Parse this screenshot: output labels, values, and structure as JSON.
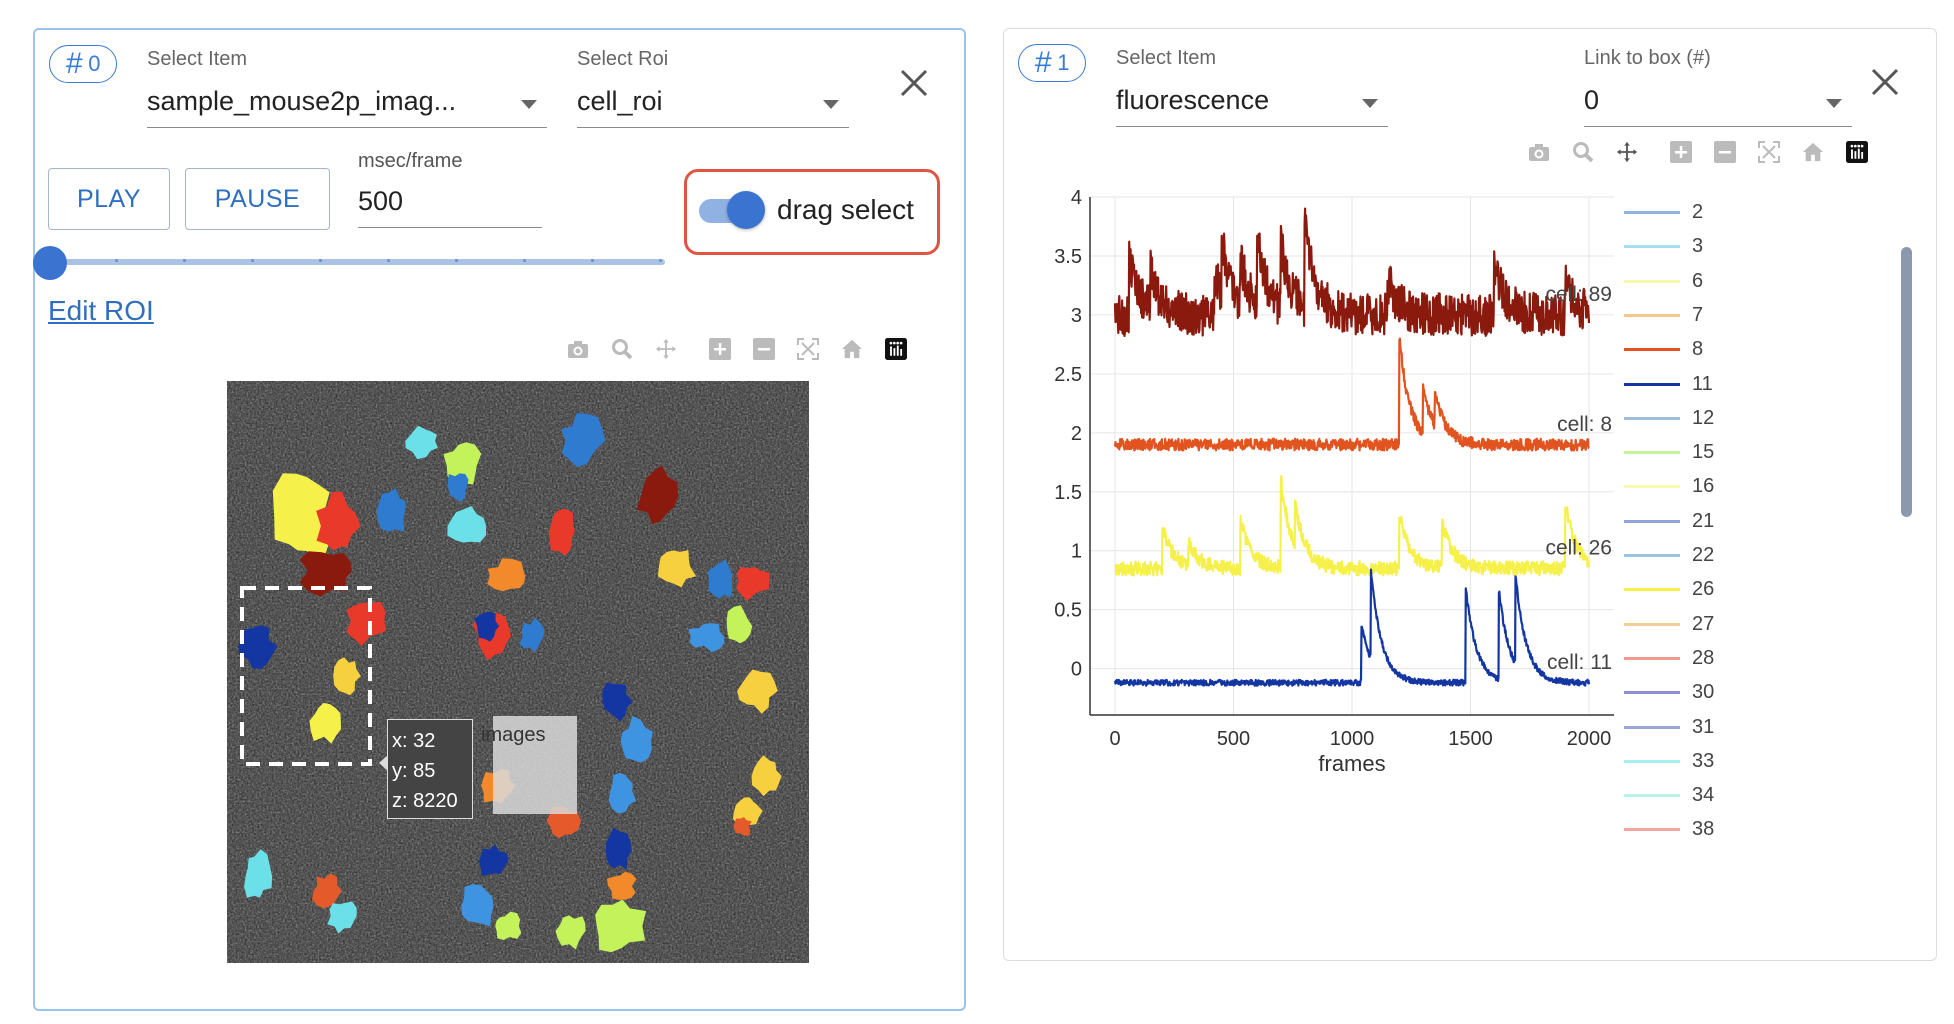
{
  "panel0": {
    "badge_hash": "#",
    "badge_num": "0",
    "select_item_label": "Select Item",
    "select_item_value": "sample_mouse2p_imag...",
    "select_roi_label": "Select Roi",
    "select_roi_value": "cell_roi",
    "play_label": "PLAY",
    "pause_label": "PAUSE",
    "msec_label": "msec/frame",
    "msec_value": "500",
    "drag_select_label": "drag select",
    "drag_select_on": true,
    "edit_roi_label": "Edit ROI",
    "tooltip": {
      "x": "x: 32",
      "y": "y: 85",
      "z": "z: 8220",
      "name": "images"
    }
  },
  "panel1": {
    "badge_hash": "#",
    "badge_num": "1",
    "select_item_label": "Select Item",
    "select_item_value": "fluorescence",
    "link_label": "Link to box (#)",
    "link_value": "0"
  },
  "icons": [
    "camera-icon",
    "zoom-icon",
    "pan-icon",
    "zoom-in-icon",
    "zoom-out-icon",
    "autoscale-icon",
    "reset-home-icon",
    "plotly-logo-icon",
    "close-icon",
    "chevron-down-icon"
  ],
  "chart_data": {
    "type": "line",
    "xlabel": "frames",
    "ylabel": "",
    "xlim": [
      0,
      2000
    ],
    "ylim": [
      -0.3,
      4
    ],
    "x_ticks": [
      "0",
      "500",
      "1000",
      "1500",
      "2000"
    ],
    "y_ticks": [
      "0",
      "0.5",
      "1",
      "1.5",
      "2",
      "2.5",
      "3",
      "3.5",
      "4"
    ],
    "series": [
      {
        "name": "cell: 89",
        "color": "#8b1a0e",
        "baseline": 3.0,
        "noise": 0.18,
        "peaks": [
          [
            60,
            0.5
          ],
          [
            150,
            0.3
          ],
          [
            420,
            0.35
          ],
          [
            450,
            0.5
          ],
          [
            530,
            0.35
          ],
          [
            600,
            0.6
          ],
          [
            700,
            0.55
          ],
          [
            800,
            0.7
          ],
          [
            1150,
            0.3
          ],
          [
            1600,
            0.45
          ],
          [
            1900,
            0.25
          ]
        ]
      },
      {
        "name": "cell: 8",
        "color": "#e2541f",
        "baseline": 1.9,
        "noise": 0.05,
        "peaks": [
          [
            1200,
            0.9
          ],
          [
            1300,
            0.4
          ],
          [
            1350,
            0.3
          ]
        ]
      },
      {
        "name": "cell: 26",
        "color": "#f5f04a",
        "baseline": 0.85,
        "noise": 0.06,
        "peaks": [
          [
            200,
            0.35
          ],
          [
            310,
            0.2
          ],
          [
            530,
            0.4
          ],
          [
            700,
            0.75
          ],
          [
            760,
            0.35
          ],
          [
            1200,
            0.45
          ],
          [
            1380,
            0.4
          ],
          [
            1900,
            0.55
          ]
        ]
      },
      {
        "name": "cell: 11",
        "color": "#1336a3",
        "baseline": -0.12,
        "noise": 0.025,
        "peaks": [
          [
            1040,
            0.5
          ],
          [
            1080,
            0.75
          ],
          [
            1480,
            0.8
          ],
          [
            1620,
            0.75
          ],
          [
            1690,
            0.75
          ]
        ]
      }
    ],
    "legend": [
      {
        "name": "2",
        "color": "#8fb5dc"
      },
      {
        "name": "3",
        "color": "#a8dcef"
      },
      {
        "name": "6",
        "color": "#f7f7a8"
      },
      {
        "name": "7",
        "color": "#f5c98a"
      },
      {
        "name": "8",
        "color": "#e2541f"
      },
      {
        "name": "11",
        "color": "#1336a3"
      },
      {
        "name": "12",
        "color": "#9ebde0"
      },
      {
        "name": "15",
        "color": "#c7f2a0"
      },
      {
        "name": "16",
        "color": "#f9f9b4"
      },
      {
        "name": "21",
        "color": "#91a4d8"
      },
      {
        "name": "22",
        "color": "#9bc3e2"
      },
      {
        "name": "26",
        "color": "#f5f04a"
      },
      {
        "name": "27",
        "color": "#f2cf98"
      },
      {
        "name": "28",
        "color": "#ee9a8e"
      },
      {
        "name": "30",
        "color": "#8d8fd0"
      },
      {
        "name": "31",
        "color": "#9aa7da"
      },
      {
        "name": "33",
        "color": "#a8eef0"
      },
      {
        "name": "34",
        "color": "#bdf2ea"
      },
      {
        "name": "38",
        "color": "#f0a99e"
      }
    ],
    "legend_placement": "right",
    "grid": true
  }
}
